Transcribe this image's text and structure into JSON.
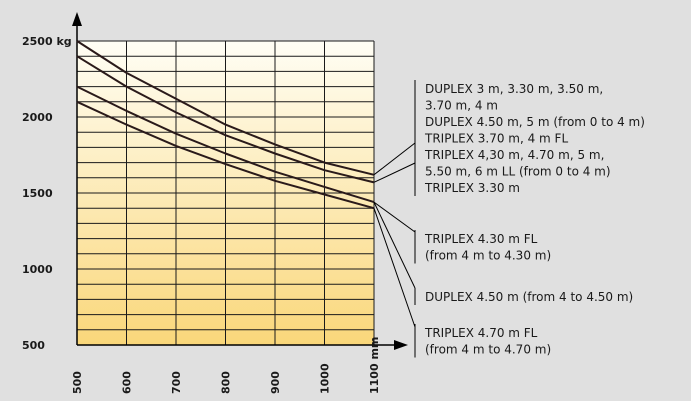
{
  "chart_data": {
    "type": "line",
    "title": "",
    "xlabel": "",
    "ylabel": "",
    "x_unit": "mm",
    "y_unit": "kg",
    "xlim": [
      500,
      1100
    ],
    "ylim": [
      500,
      2500
    ],
    "x_ticks": [
      500,
      600,
      700,
      800,
      900,
      1000,
      1100
    ],
    "x_tick_labels": [
      "500",
      "600",
      "700",
      "800",
      "900",
      "1000",
      "1100 mm"
    ],
    "y_ticks": [
      500,
      1000,
      1500,
      2000,
      2500
    ],
    "y_tick_labels": [
      "500",
      "1000",
      "1500",
      "2000",
      "2500 kg"
    ],
    "grid": true,
    "legend_position": "right",
    "colors": {
      "background": "#e0e0e0",
      "grid_top": "#fffef5",
      "grid_bottom": "#fad77a",
      "grid_line": "#1a1a1a",
      "line": "#2a1a1a"
    },
    "series": [
      {
        "x": [
          500,
          600,
          700,
          800,
          900,
          1000,
          1100
        ],
        "y": [
          2500,
          2290,
          2120,
          1950,
          1820,
          1700,
          1620
        ]
      },
      {
        "x": [
          500,
          600,
          700,
          800,
          900,
          1000,
          1100
        ],
        "y": [
          2400,
          2200,
          2030,
          1880,
          1760,
          1650,
          1570
        ]
      },
      {
        "x": [
          500,
          600,
          700,
          800,
          900,
          1000,
          1100
        ],
        "y": [
          2200,
          2040,
          1890,
          1760,
          1640,
          1540,
          1440
        ]
      },
      {
        "x": [
          500,
          600,
          700,
          800,
          900,
          1000,
          1100
        ],
        "y": [
          2100,
          1950,
          1810,
          1690,
          1580,
          1490,
          1400
        ]
      }
    ],
    "legend": [
      {
        "lines": [
          "DUPLEX 3 m, 3.30 m, 3.50 m,",
          "3.70 m, 4 m",
          "DUPLEX 4.50 m, 5 m  (from 0 to 4 m)",
          "TRIPLEX 3.70 m, 4 m FL",
          "TRIPLEX 4,30 m, 4.70 m, 5 m,",
          "5.50 m, 6 m LL (from 0 to 4 m)",
          "TRIPLEX 3.30 m"
        ]
      },
      {
        "lines": [
          "TRIPLEX 4.30 m FL",
          "(from 4 m to 4.30 m)"
        ]
      },
      {
        "lines": [
          "DUPLEX 4.50 m (from 4 to 4.50 m)"
        ]
      },
      {
        "lines": [
          "TRIPLEX 4.70 m FL",
          "(from 4 m to  4.70 m)"
        ]
      }
    ]
  }
}
